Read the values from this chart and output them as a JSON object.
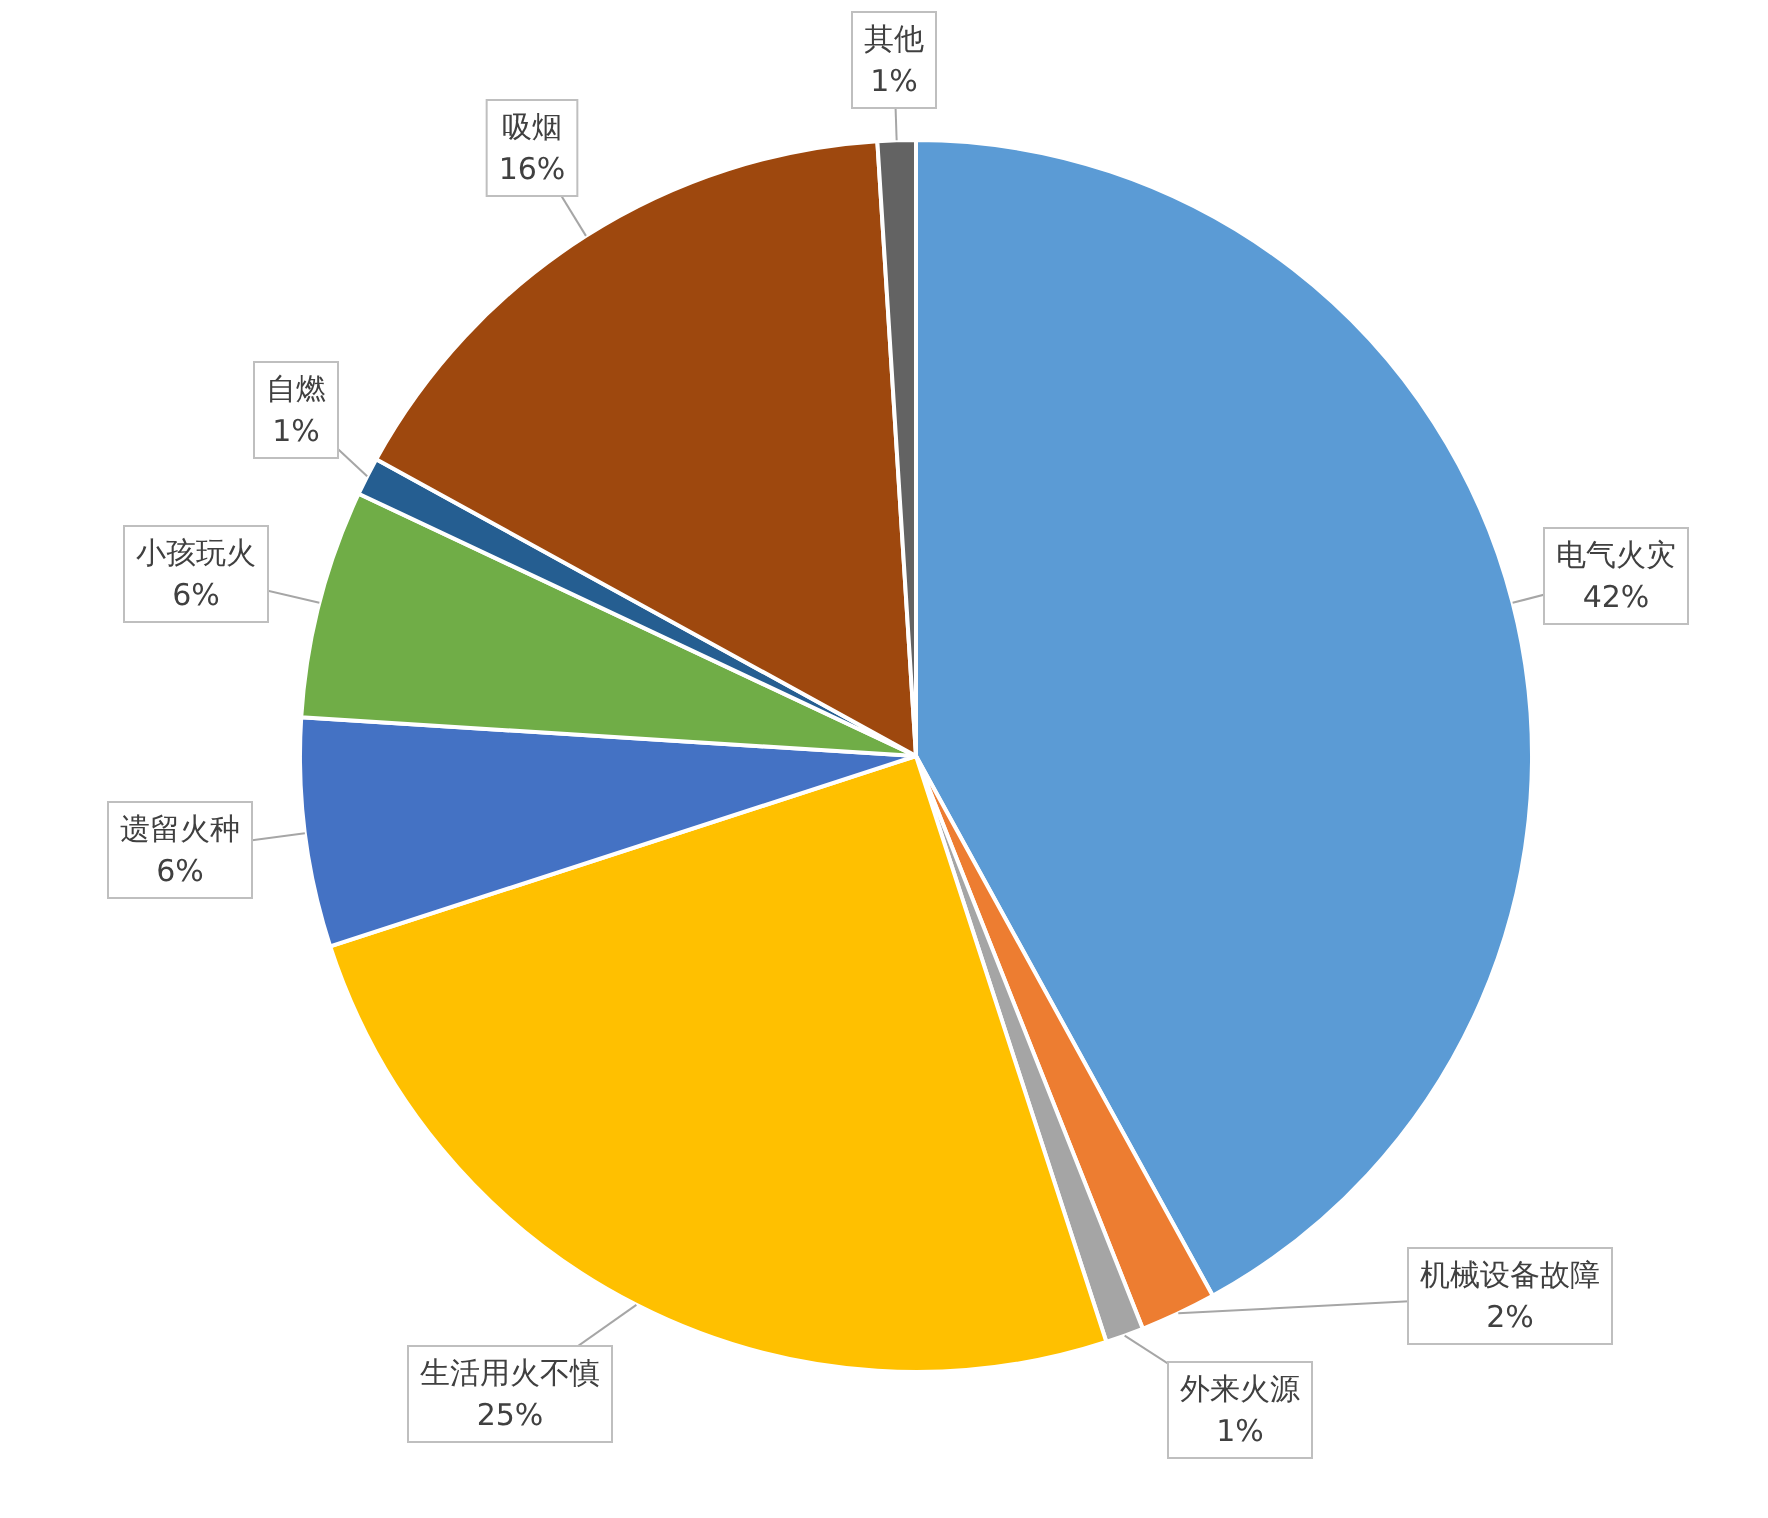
{
  "chart_data": {
    "type": "pie",
    "categories": [
      "电气火灾",
      "机械设备故障",
      "外来火源",
      "生活用火不慎",
      "遗留火种",
      "小孩玩火",
      "自燃",
      "吸烟",
      "其他"
    ],
    "values": [
      42,
      2,
      1,
      25,
      6,
      6,
      1,
      16,
      1
    ],
    "colors": [
      "#5b9bd5",
      "#ed7d31",
      "#a5a5a5",
      "#ffc000",
      "#4472c4",
      "#70ad47",
      "#255e91",
      "#9e480e",
      "#636363"
    ],
    "value_labels": [
      "42%",
      "2%",
      "1%",
      "25%",
      "6%",
      "6%",
      "1%",
      "16%",
      "1%"
    ]
  }
}
